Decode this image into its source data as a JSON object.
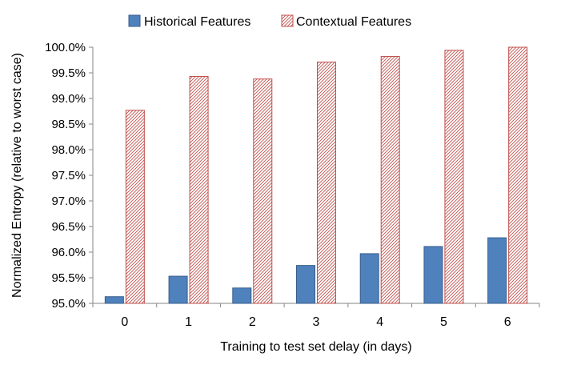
{
  "chart_data": {
    "type": "bar",
    "title": "",
    "xlabel": "Training to test set delay (in days)",
    "ylabel": "Normalized Entropy (relative to worst case)",
    "categories": [
      "0",
      "1",
      "2",
      "3",
      "4",
      "5",
      "6"
    ],
    "ylim": [
      95.0,
      100.0
    ],
    "yticks": [
      "95.0%",
      "95.5%",
      "96.0%",
      "96.5%",
      "97.0%",
      "97.5%",
      "98.0%",
      "98.5%",
      "99.0%",
      "99.5%",
      "100.0%"
    ],
    "grid": false,
    "legend_position": "top",
    "series": [
      {
        "name": "Historical Features",
        "values": [
          95.13,
          95.53,
          95.3,
          95.74,
          95.97,
          96.11,
          96.28
        ],
        "color": "#4f81bd",
        "pattern": "solid"
      },
      {
        "name": "Contextual Features",
        "values": [
          98.77,
          99.43,
          99.38,
          99.71,
          99.82,
          99.94,
          100.0
        ],
        "color": "#c0504d",
        "pattern": "diagonal-hatch"
      }
    ]
  }
}
